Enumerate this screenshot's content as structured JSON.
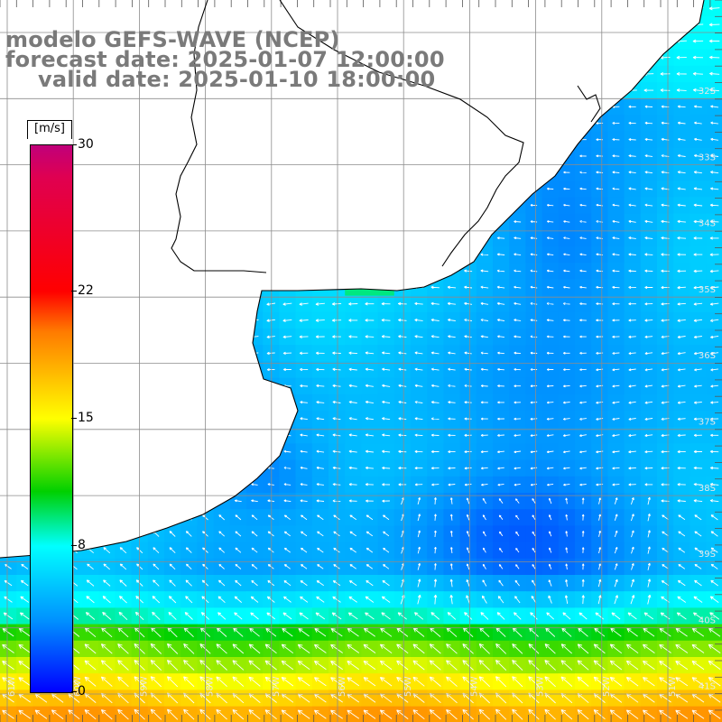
{
  "title": {
    "line1": "modelo GEFS-WAVE (NCEP)",
    "line2": "forecast date: 2025-01-07 12:00:00",
    "line3": "valid date: 2025-01-10 18:00:00"
  },
  "colorbar": {
    "units": "[m/s]",
    "labels": [
      "30",
      "22",
      "15",
      "8",
      "0"
    ],
    "label_values": [
      30,
      22,
      15,
      8,
      0
    ],
    "range": [
      0,
      30
    ],
    "colors": [
      "#0000ff",
      "#0090ff",
      "#00ffff",
      "#00d000",
      "#ffff00",
      "#ff7a00",
      "#ff0000",
      "#e00050",
      "#c0007a"
    ]
  },
  "map": {
    "latitude_labels": [
      "32S",
      "33S",
      "34S",
      "35S",
      "36S",
      "37S",
      "38S",
      "39S",
      "40S",
      "41S"
    ],
    "longitude_labels": [
      "61W",
      "60W",
      "59W",
      "58W",
      "57W",
      "56W",
      "55W",
      "54W",
      "53W",
      "52W",
      "51W"
    ],
    "land_color": "#ffffff",
    "grid_color": "#8c8c8c",
    "coast_color": "#000000",
    "arrow_color": "#ffffff",
    "wind_direction": "predominantly from the east/southeast (arrows pointing west/northwest)"
  }
}
